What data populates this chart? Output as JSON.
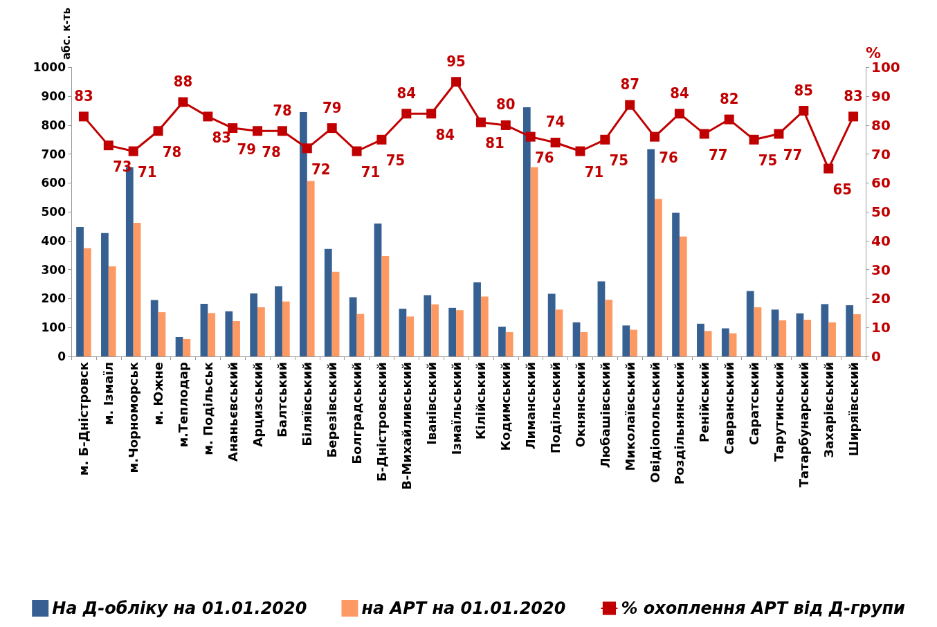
{
  "chart_data": {
    "type": "bar",
    "ylabel": "абс. к-ть",
    "y2label": "%",
    "categories": [
      "м. Б-Дністровск",
      "м. Ізмаїл",
      "м.Чорноморськ",
      "м. Южне",
      "м.Теплодар",
      "м. Подільськ",
      "Ананьєвський",
      "Арцизський",
      "Балтський",
      "Біляївський",
      "Березівський",
      "Болградський",
      "Б-Дністровський",
      "В-Михайливський",
      "Іванівський",
      "Ізмаїльський",
      "Кілійський",
      "Кодимський",
      "Лиманський",
      "Подільський",
      "Окнянський",
      "Любашівський",
      "Миколаївський",
      "Овідіопольський",
      "Роздільнянський",
      "Ренійський",
      "Савранський",
      "Саратський",
      "Тарутинський",
      "Татарбунарський",
      "Захарівський",
      "Ширяївський"
    ],
    "series": [
      {
        "name": "На Д-обліку на 01.01.2020",
        "color": "#366092",
        "values": [
          448,
          427,
          655,
          195,
          67,
          182,
          156,
          218,
          243,
          845,
          372,
          205,
          460,
          165,
          212,
          168,
          256,
          103,
          862,
          217,
          118,
          260,
          107,
          717,
          497,
          113,
          97,
          226,
          162,
          149,
          181,
          177
        ]
      },
      {
        "name": "на АРТ на 01.01.2020",
        "color": "#fd9a64",
        "values": [
          375,
          312,
          462,
          153,
          60,
          150,
          122,
          170,
          190,
          607,
          293,
          147,
          347,
          138,
          180,
          160,
          207,
          84,
          655,
          162,
          84,
          196,
          92,
          545,
          415,
          88,
          80,
          170,
          125,
          127,
          118,
          146
        ]
      },
      {
        "name": "% охоплення АРТ від Д-групи",
        "type": "line",
        "axis": "y2",
        "color": "#c00000",
        "marker": "square",
        "data_labels": true,
        "values": [
          83,
          73,
          71,
          78,
          88,
          83,
          79,
          78,
          78,
          72,
          79,
          71,
          75,
          84,
          84,
          95,
          81,
          80,
          76,
          74,
          71,
          75,
          87,
          76,
          84,
          77,
          82,
          75,
          77,
          85,
          65,
          83
        ]
      }
    ],
    "ylim": [
      0,
      1000
    ],
    "yticks": [
      0,
      100,
      200,
      300,
      400,
      500,
      600,
      700,
      800,
      900,
      1000
    ],
    "y2lim": [
      0,
      100
    ],
    "y2ticks": [
      0,
      10,
      20,
      30,
      40,
      50,
      60,
      70,
      80,
      90,
      100
    ],
    "grid": false,
    "legend": "bottom"
  }
}
